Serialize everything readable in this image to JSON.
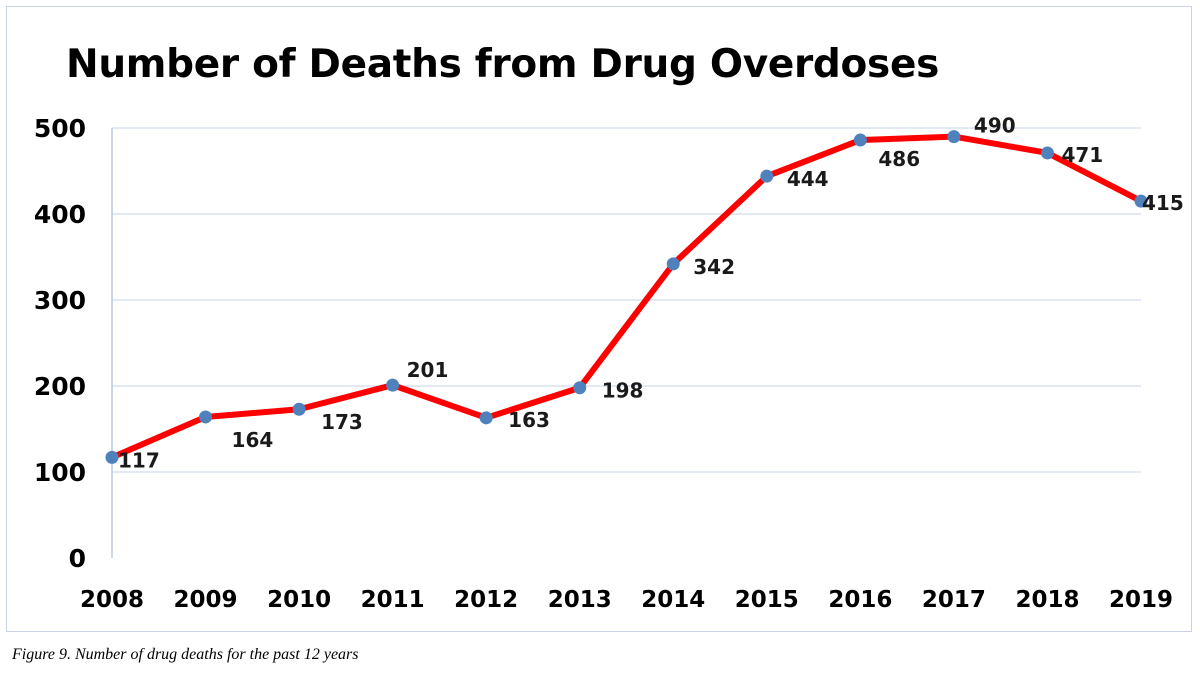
{
  "caption": "Figure 9. Number of drug deaths for the past 12 years",
  "colors": {
    "line": "#ff0000",
    "marker": "#4f81bd",
    "gridline": "#d9e2ef",
    "axis": "#b7c8e0"
  },
  "chart_data": {
    "type": "line",
    "title": "Number of Deaths from Drug Overdoses",
    "xlabel": "",
    "ylabel": "",
    "ylim": [
      0,
      500
    ],
    "yticks": [
      0,
      100,
      200,
      300,
      400,
      500
    ],
    "grid": true,
    "legend": "none",
    "categories": [
      "2008",
      "2009",
      "2010",
      "2011",
      "2012",
      "2013",
      "2014",
      "2015",
      "2016",
      "2017",
      "2018",
      "2019"
    ],
    "series": [
      {
        "values": [
          117,
          164,
          173,
          201,
          163,
          198,
          342,
          444,
          486,
          490,
          471,
          415
        ],
        "labels": [
          "117",
          "164",
          "173",
          "201",
          "163",
          "198",
          "342",
          "444",
          "486",
          "490",
          "471",
          "415"
        ]
      }
    ]
  }
}
